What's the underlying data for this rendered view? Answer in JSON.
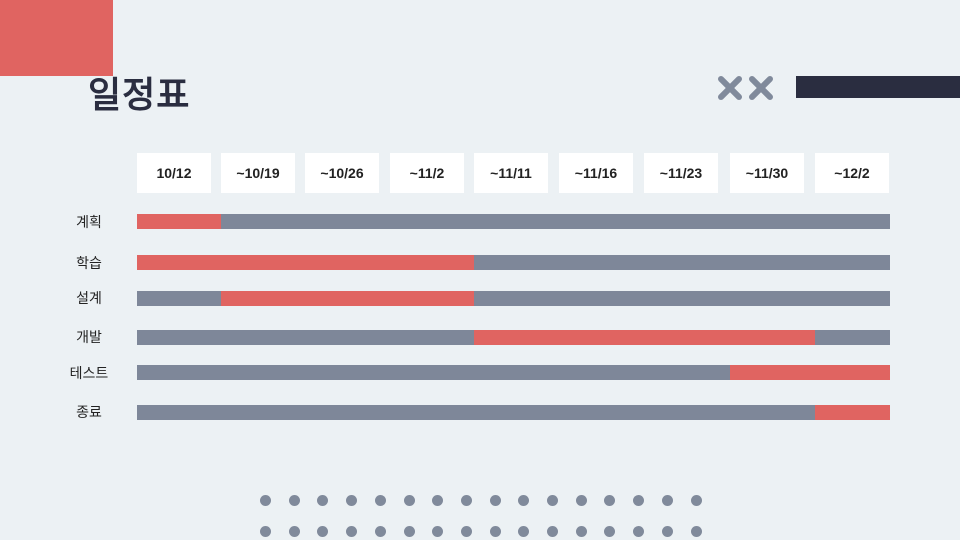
{
  "title": "일정표",
  "colors": {
    "accent": "#e06461",
    "track": "#7e8799",
    "dark": "#2a2d40",
    "background": "#ecf1f4",
    "dots": "#808a9b"
  },
  "icons": [
    "x-icon",
    "x-icon"
  ],
  "columns": [
    "10/12",
    "~10/19",
    "~10/26",
    "~11/2",
    "~11/11",
    "~11/16",
    "~11/23",
    "~11/30",
    "~12/2"
  ],
  "rows": [
    {
      "label": "계획",
      "start_col": 0,
      "end_col": 1
    },
    {
      "label": "학습",
      "start_col": 0,
      "end_col": 4
    },
    {
      "label": "설계",
      "start_col": 1,
      "end_col": 4
    },
    {
      "label": "개발",
      "start_col": 4,
      "end_col": 8
    },
    {
      "label": "테스트",
      "start_col": 7,
      "end_col": 9
    },
    {
      "label": "종료",
      "start_col": 8,
      "end_col": 9
    }
  ]
}
